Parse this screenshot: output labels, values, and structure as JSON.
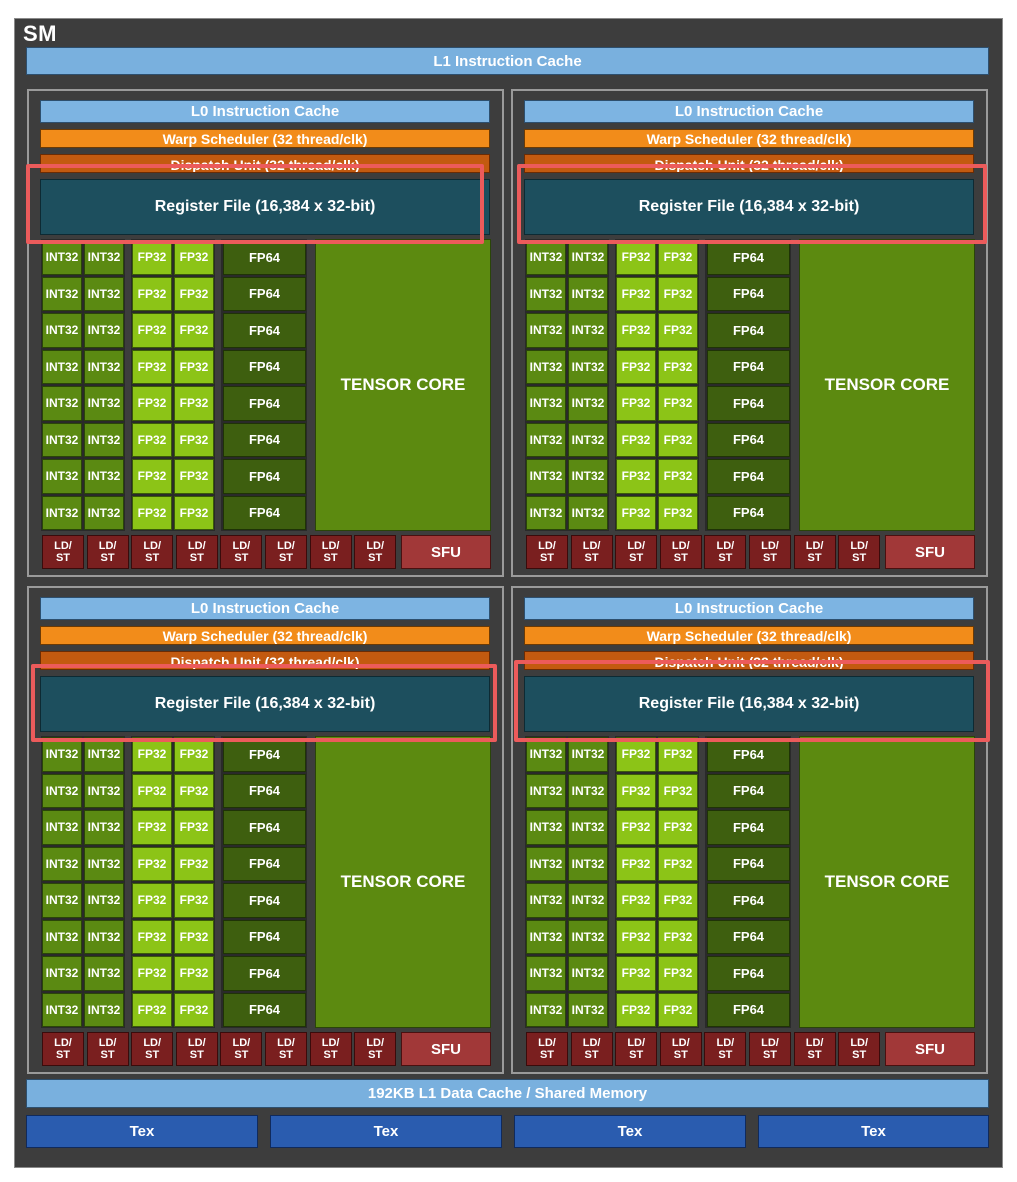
{
  "sm": {
    "title": "SM",
    "l1_instruction_cache": "L1 Instruction Cache",
    "l1_data_cache": "192KB L1 Data Cache / Shared Memory",
    "tex_units": [
      "Tex",
      "Tex",
      "Tex",
      "Tex"
    ]
  },
  "partition": {
    "l0_cache": "L0 Instruction Cache",
    "warp_scheduler": "Warp Scheduler (32 thread/clk)",
    "dispatch_unit": "Dispatch Unit (32 thread/clk)",
    "register_file": "Register File (16,384 x 32-bit)",
    "int32_label": "INT32",
    "fp32_label": "FP32",
    "fp64_label": "FP64",
    "tensor_core_label": "TENSOR CORE",
    "ldst_label": "LD/\nST",
    "sfu_label": "SFU",
    "int32_rows": 8,
    "fp32_rows": 8,
    "fp64_rows": 8,
    "ldst_units": 8
  },
  "partitions": [
    {
      "id": "top-left"
    },
    {
      "id": "top-right"
    },
    {
      "id": "bottom-left"
    },
    {
      "id": "bottom-right"
    }
  ],
  "colors": {
    "highlight": "#ec5b5b",
    "l1_cache": "#79b0de",
    "warp_scheduler": "#f28c1a",
    "dispatch_unit": "#c35a10",
    "register_file": "#1d4f5e",
    "int32": "#5b8a12",
    "fp32": "#8cc417",
    "fp64": "#3e5f0f",
    "tensor_core": "#5c8a10",
    "ldst": "#7a1f1f",
    "sfu": "#a13838",
    "tex": "#2a5caf"
  }
}
